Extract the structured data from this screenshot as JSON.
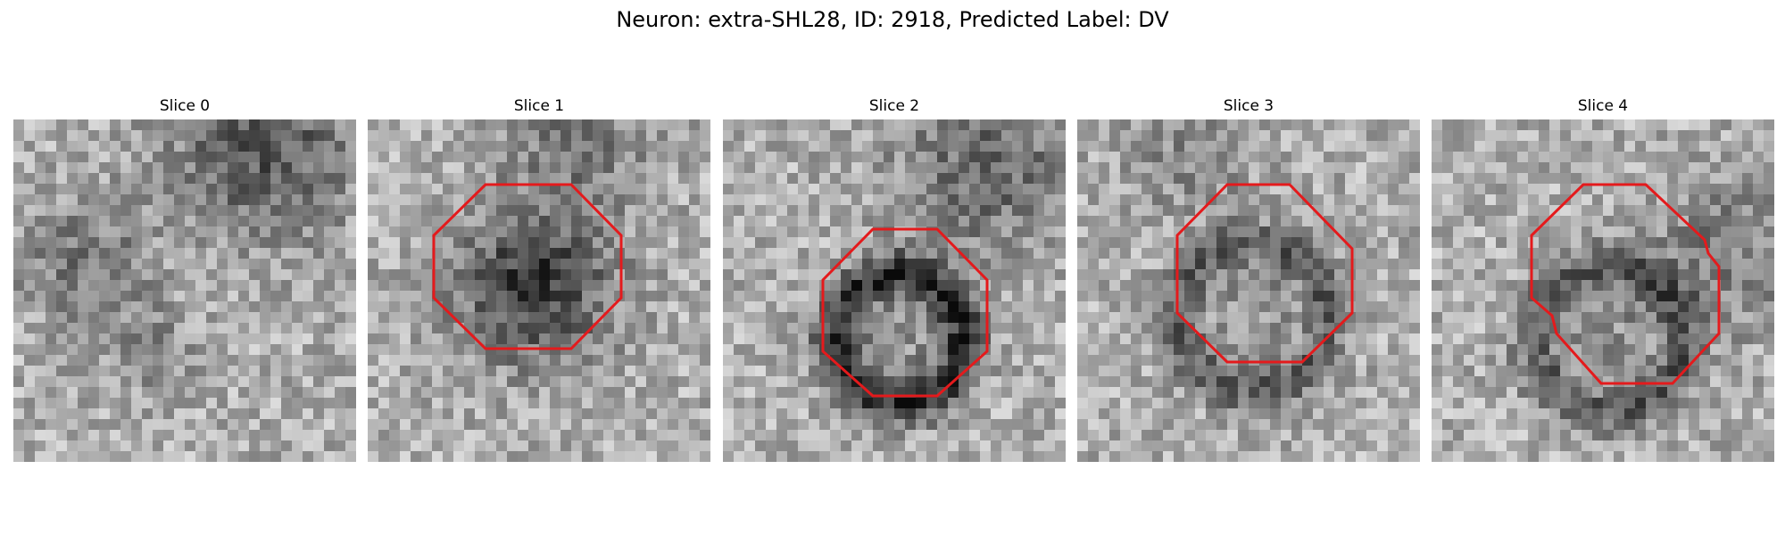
{
  "figure": {
    "title": "Neuron: extra-SHL28, ID: 2918, Predicted Label: DV"
  },
  "colors": {
    "roi_outline": "#e41a1c",
    "background": "#ffffff"
  },
  "panels": [
    {
      "title": "Slice 0",
      "has_roi_outline": false
    },
    {
      "title": "Slice 1",
      "has_roi_outline": true
    },
    {
      "title": "Slice 2",
      "has_roi_outline": true
    },
    {
      "title": "Slice 3",
      "has_roi_outline": true
    },
    {
      "title": "Slice 4",
      "has_roi_outline": true
    }
  ]
}
